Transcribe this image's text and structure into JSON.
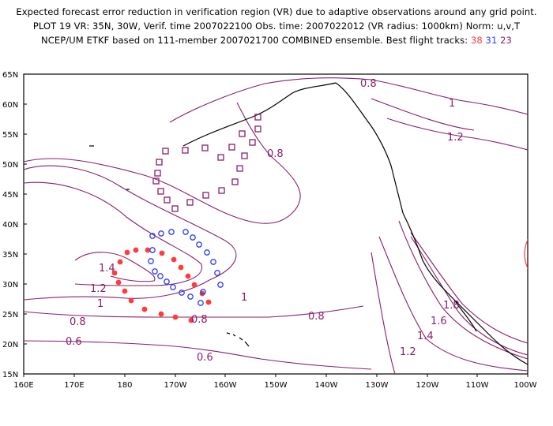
{
  "header": {
    "line1": "Expected forecast error reduction in verification region (VR) due to adaptive observations around any grid point.",
    "line2": "PLOT 19 VR: 35N, 30W, Verif. time 2007022100 Obs. time: 2007022012 (VR radius: 1000km) Norm: u,v,T",
    "line3_prefix": "NCEP/UM ETKF based on 111-member 2007021700 COMBINED ensemble.  Best flight tracks: ",
    "track1": "38",
    "track2": "31",
    "track3": "23"
  },
  "colors": {
    "contour": "#8a1f6a",
    "track1": "#ff3b3b",
    "track2": "#2a3dff",
    "track3": "#8a1f6a",
    "vr_circle": "#ff3b3b"
  },
  "axes": {
    "lat_labels": [
      "65N",
      "60N",
      "55N",
      "50N",
      "45N",
      "40N",
      "35N",
      "30N",
      "25N",
      "20N",
      "15N"
    ],
    "lon_labels": [
      "160E",
      "170E",
      "180",
      "170W",
      "160W",
      "150W",
      "140W",
      "130W",
      "120W",
      "110W",
      "100W"
    ]
  },
  "contour_labels": [
    "0.8",
    "1",
    "1.2",
    "0.8",
    "1.4",
    "1.2",
    "1",
    "0.8",
    "0.6",
    "0.8",
    "0.8",
    "0.6",
    "1.8",
    "1.6",
    "1.4",
    "1.2",
    "1"
  ]
}
